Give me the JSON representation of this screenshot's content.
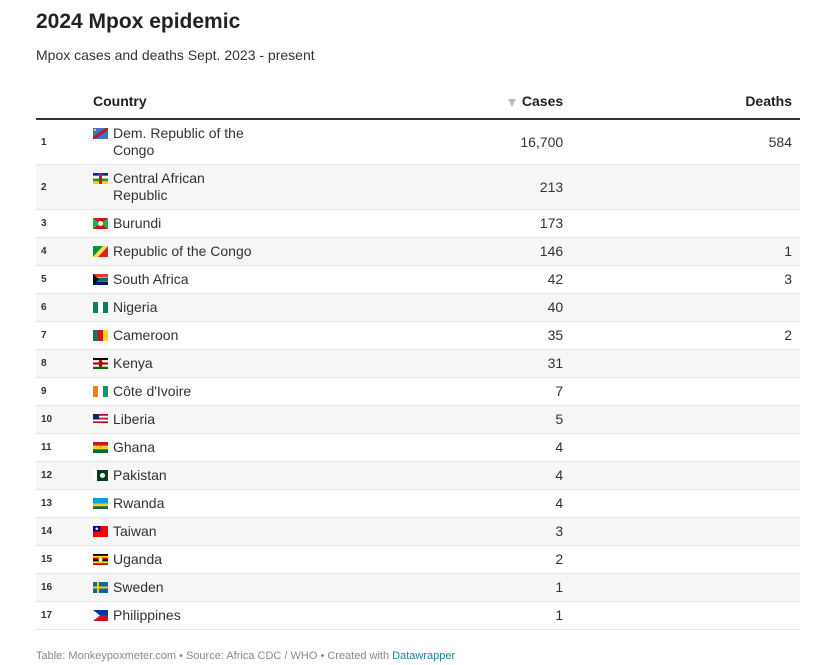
{
  "header": {
    "title": "2024 Mpox epidemic",
    "subtitle": "Mpox cases and deaths Sept. 2023 - present"
  },
  "table": {
    "columns": [
      "Country",
      "Cases",
      "Deaths"
    ],
    "rows": [
      {
        "rank": "1",
        "country": "Dem. Republic of the Congo",
        "cases": "16,700",
        "deaths": "584"
      },
      {
        "rank": "2",
        "country": "Central African Republic",
        "cases": "213",
        "deaths": null
      },
      {
        "rank": "3",
        "country": "Burundi",
        "cases": "173",
        "deaths": null
      },
      {
        "rank": "4",
        "country": "Republic of the Congo",
        "cases": "146",
        "deaths": "1"
      },
      {
        "rank": "5",
        "country": "South Africa",
        "cases": "42",
        "deaths": "3"
      },
      {
        "rank": "6",
        "country": "Nigeria",
        "cases": "40",
        "deaths": null
      },
      {
        "rank": "7",
        "country": "Cameroon",
        "cases": "35",
        "deaths": "2"
      },
      {
        "rank": "8",
        "country": "Kenya",
        "cases": "31",
        "deaths": null
      },
      {
        "rank": "9",
        "country": "Côte d'Ivoire",
        "cases": "7",
        "deaths": null
      },
      {
        "rank": "10",
        "country": "Liberia",
        "cases": "5",
        "deaths": null
      },
      {
        "rank": "11",
        "country": "Ghana",
        "cases": "4",
        "deaths": null
      },
      {
        "rank": "12",
        "country": "Pakistan",
        "cases": "4",
        "deaths": null
      },
      {
        "rank": "13",
        "country": "Rwanda",
        "cases": "4",
        "deaths": null
      },
      {
        "rank": "14",
        "country": "Taiwan",
        "cases": "3",
        "deaths": null
      },
      {
        "rank": "15",
        "country": "Uganda",
        "cases": "2",
        "deaths": null
      },
      {
        "rank": "16",
        "country": "Sweden",
        "cases": "1",
        "deaths": null
      },
      {
        "rank": "17",
        "country": "Philippines",
        "cases": "1",
        "deaths": null
      }
    ]
  },
  "footer": {
    "text": "Table: Monkeypoxmeter.com • Source: Africa CDC / WHO • Created with",
    "link": "Datawrapper"
  }
}
